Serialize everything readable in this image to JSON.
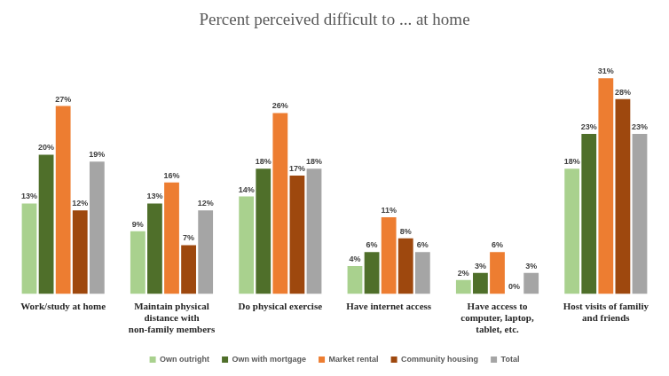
{
  "chart_data": {
    "type": "bar",
    "title": "Percent perceived difficult to ... at home",
    "categories": [
      "Work/study at home",
      "Maintain physical distance with non-family members",
      "Do physical exercise",
      "Have internet access",
      "Have access to computer, laptop, tablet, etc.",
      "Host visits of familiy and friends"
    ],
    "series": [
      {
        "name": "Own outright",
        "color": "#a9d18e",
        "values": [
          13,
          9,
          14,
          4,
          2,
          18
        ],
        "value_labels": [
          "13%",
          "9%",
          "14%",
          "4%",
          "2%",
          "18%"
        ]
      },
      {
        "name": "Own with mortgage",
        "color": "#4f6f2a",
        "values": [
          20,
          13,
          18,
          6,
          3,
          23
        ],
        "value_labels": [
          "20%",
          "13%",
          "18%",
          "6%",
          "3%",
          "23%"
        ]
      },
      {
        "name": "Market rental",
        "color": "#ed7d31",
        "values": [
          27,
          16,
          26,
          11,
          6,
          31
        ],
        "value_labels": [
          "27%",
          "16%",
          "26%",
          "11%",
          "6%",
          "31%"
        ]
      },
      {
        "name": "Community housing",
        "color": "#9e480e",
        "values": [
          12,
          7,
          17,
          8,
          0,
          28
        ],
        "value_labels": [
          "12%",
          "7%",
          "17%",
          "8%",
          "0%",
          "28%"
        ]
      },
      {
        "name": "Total",
        "color": "#a5a5a5",
        "values": [
          19,
          12,
          18,
          6,
          3,
          23
        ],
        "value_labels": [
          "19%",
          "12%",
          "18%",
          "6%",
          "3%",
          "23%"
        ]
      }
    ],
    "data_labels": true,
    "legend": "bottom",
    "grid": false,
    "tick_labels": "x"
  }
}
